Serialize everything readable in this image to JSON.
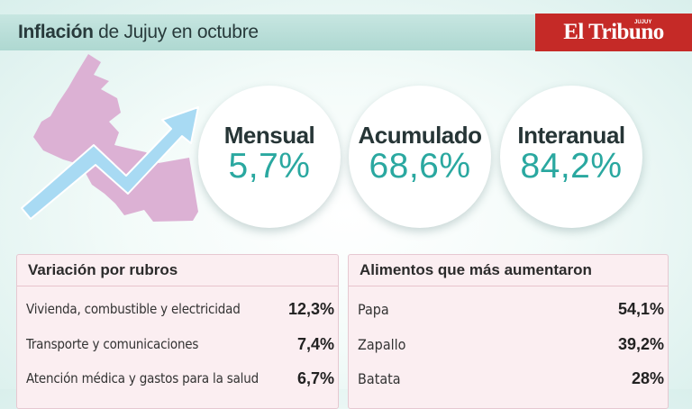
{
  "header": {
    "title_bold": "Inflación",
    "title_rest": " de Jujuy en octubre",
    "brand": "El Tribuno",
    "brand_sub": "JUJUY"
  },
  "colors": {
    "header_band": "#b7ddd7",
    "brand_red": "#c52a27",
    "value_teal": "#2aa8a0",
    "map_pink": "#dcb1d4",
    "arrow_blue": "#a8daf3",
    "panel_pink": "#fbeef1"
  },
  "illustration": {
    "map": "jujuy-map-icon",
    "arrow": "trend-up-arrow-icon"
  },
  "indicators": [
    {
      "label": "Mensual",
      "value": "5,7%"
    },
    {
      "label": "Acumulado",
      "value": "68,6%"
    },
    {
      "label": "Interanual",
      "value": "84,2%"
    }
  ],
  "rubros": {
    "title": "Variación por rubros",
    "rows": [
      {
        "label": "Vivienda, combustible y electricidad",
        "value": "12,3%"
      },
      {
        "label": "Transporte y comunicaciones",
        "value": "7,4%"
      },
      {
        "label": "Atención médica y gastos para la salud",
        "value": "6,7%"
      }
    ]
  },
  "alimentos": {
    "title": "Alimentos que más aumentaron",
    "rows": [
      {
        "label": "Papa",
        "value": "54,1%"
      },
      {
        "label": "Zapallo",
        "value": "39,2%"
      },
      {
        "label": "Batata",
        "value": "28%"
      }
    ]
  }
}
